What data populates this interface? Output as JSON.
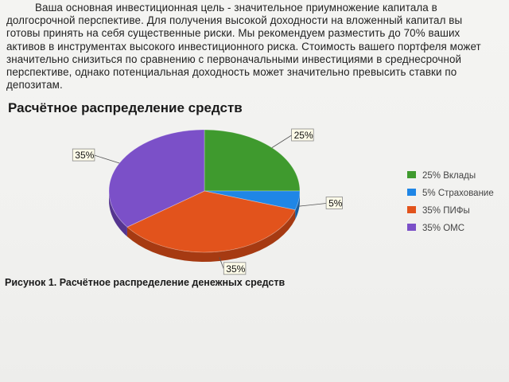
{
  "paragraph": "Ваша основная инвестиционная цель - значительное приумножение капитала в долгосрочной перспективе. Для получения высокой доходности на вложенный капитал вы готовы принять на себя существенные риски. Мы рекомендуем разместить до 70% ваших активов в инструментах высокого инвестиционного риска. Стоимость вашего портфеля может значительно снизиться по сравнению с первоначальными инвестициями в среднесрочной перспективе, однако потенциальная доходность может значительно превысить ставки по депозитам.",
  "heading": "Расчётное распределение средств",
  "caption": "Рисунок 1. Расчётное распределение денежных средств",
  "chart_data": {
    "type": "pie",
    "title": "",
    "slices": [
      {
        "label": "Вклады",
        "value": 25,
        "display": "25%",
        "legend": "25% Вклады",
        "color": "#3f9a2e",
        "side": "#2c6e20"
      },
      {
        "label": "Страхование",
        "value": 5,
        "display": "5%",
        "legend": "5% Страхование",
        "color": "#1f86e6",
        "side": "#155ea3"
      },
      {
        "label": "ПИФы",
        "value": 35,
        "display": "35%",
        "legend": "35% ПИФы",
        "color": "#e2531c",
        "side": "#a63a12"
      },
      {
        "label": "ОМС",
        "value": 35,
        "display": "35%",
        "legend": "35% ОМС",
        "color": "#7b50c8",
        "side": "#553590"
      }
    ],
    "legend_position": "right"
  }
}
